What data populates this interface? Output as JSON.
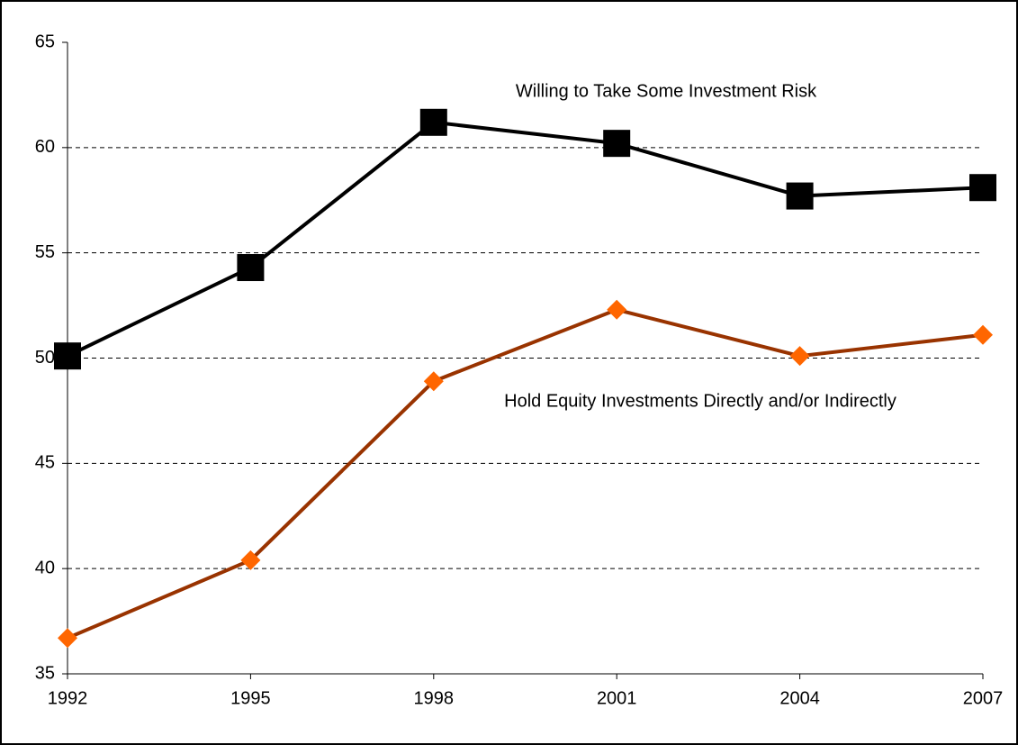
{
  "chart_data": {
    "type": "line",
    "x": [
      1992,
      1995,
      1998,
      2001,
      2004,
      2007
    ],
    "xlim": [
      1992,
      2007
    ],
    "xticks": [
      1992,
      1995,
      1998,
      2001,
      2004,
      2007
    ],
    "ylim": [
      35,
      65
    ],
    "yticks": [
      35,
      40,
      45,
      50,
      55,
      60,
      65
    ],
    "grid": true,
    "series": [
      {
        "name": "Willing to Take Some Investment Risk",
        "color": "#000000",
        "marker": "square",
        "marker_color": "#000000",
        "values": [
          50.1,
          54.3,
          61.2,
          60.2,
          57.7,
          58.1
        ]
      },
      {
        "name": "Hold Equity Investments Directly and/or Indirectly",
        "color": "#993300",
        "marker": "diamond",
        "marker_color": "#ff6600",
        "values": [
          36.7,
          40.4,
          48.9,
          52.3,
          50.1,
          51.1
        ]
      }
    ]
  }
}
